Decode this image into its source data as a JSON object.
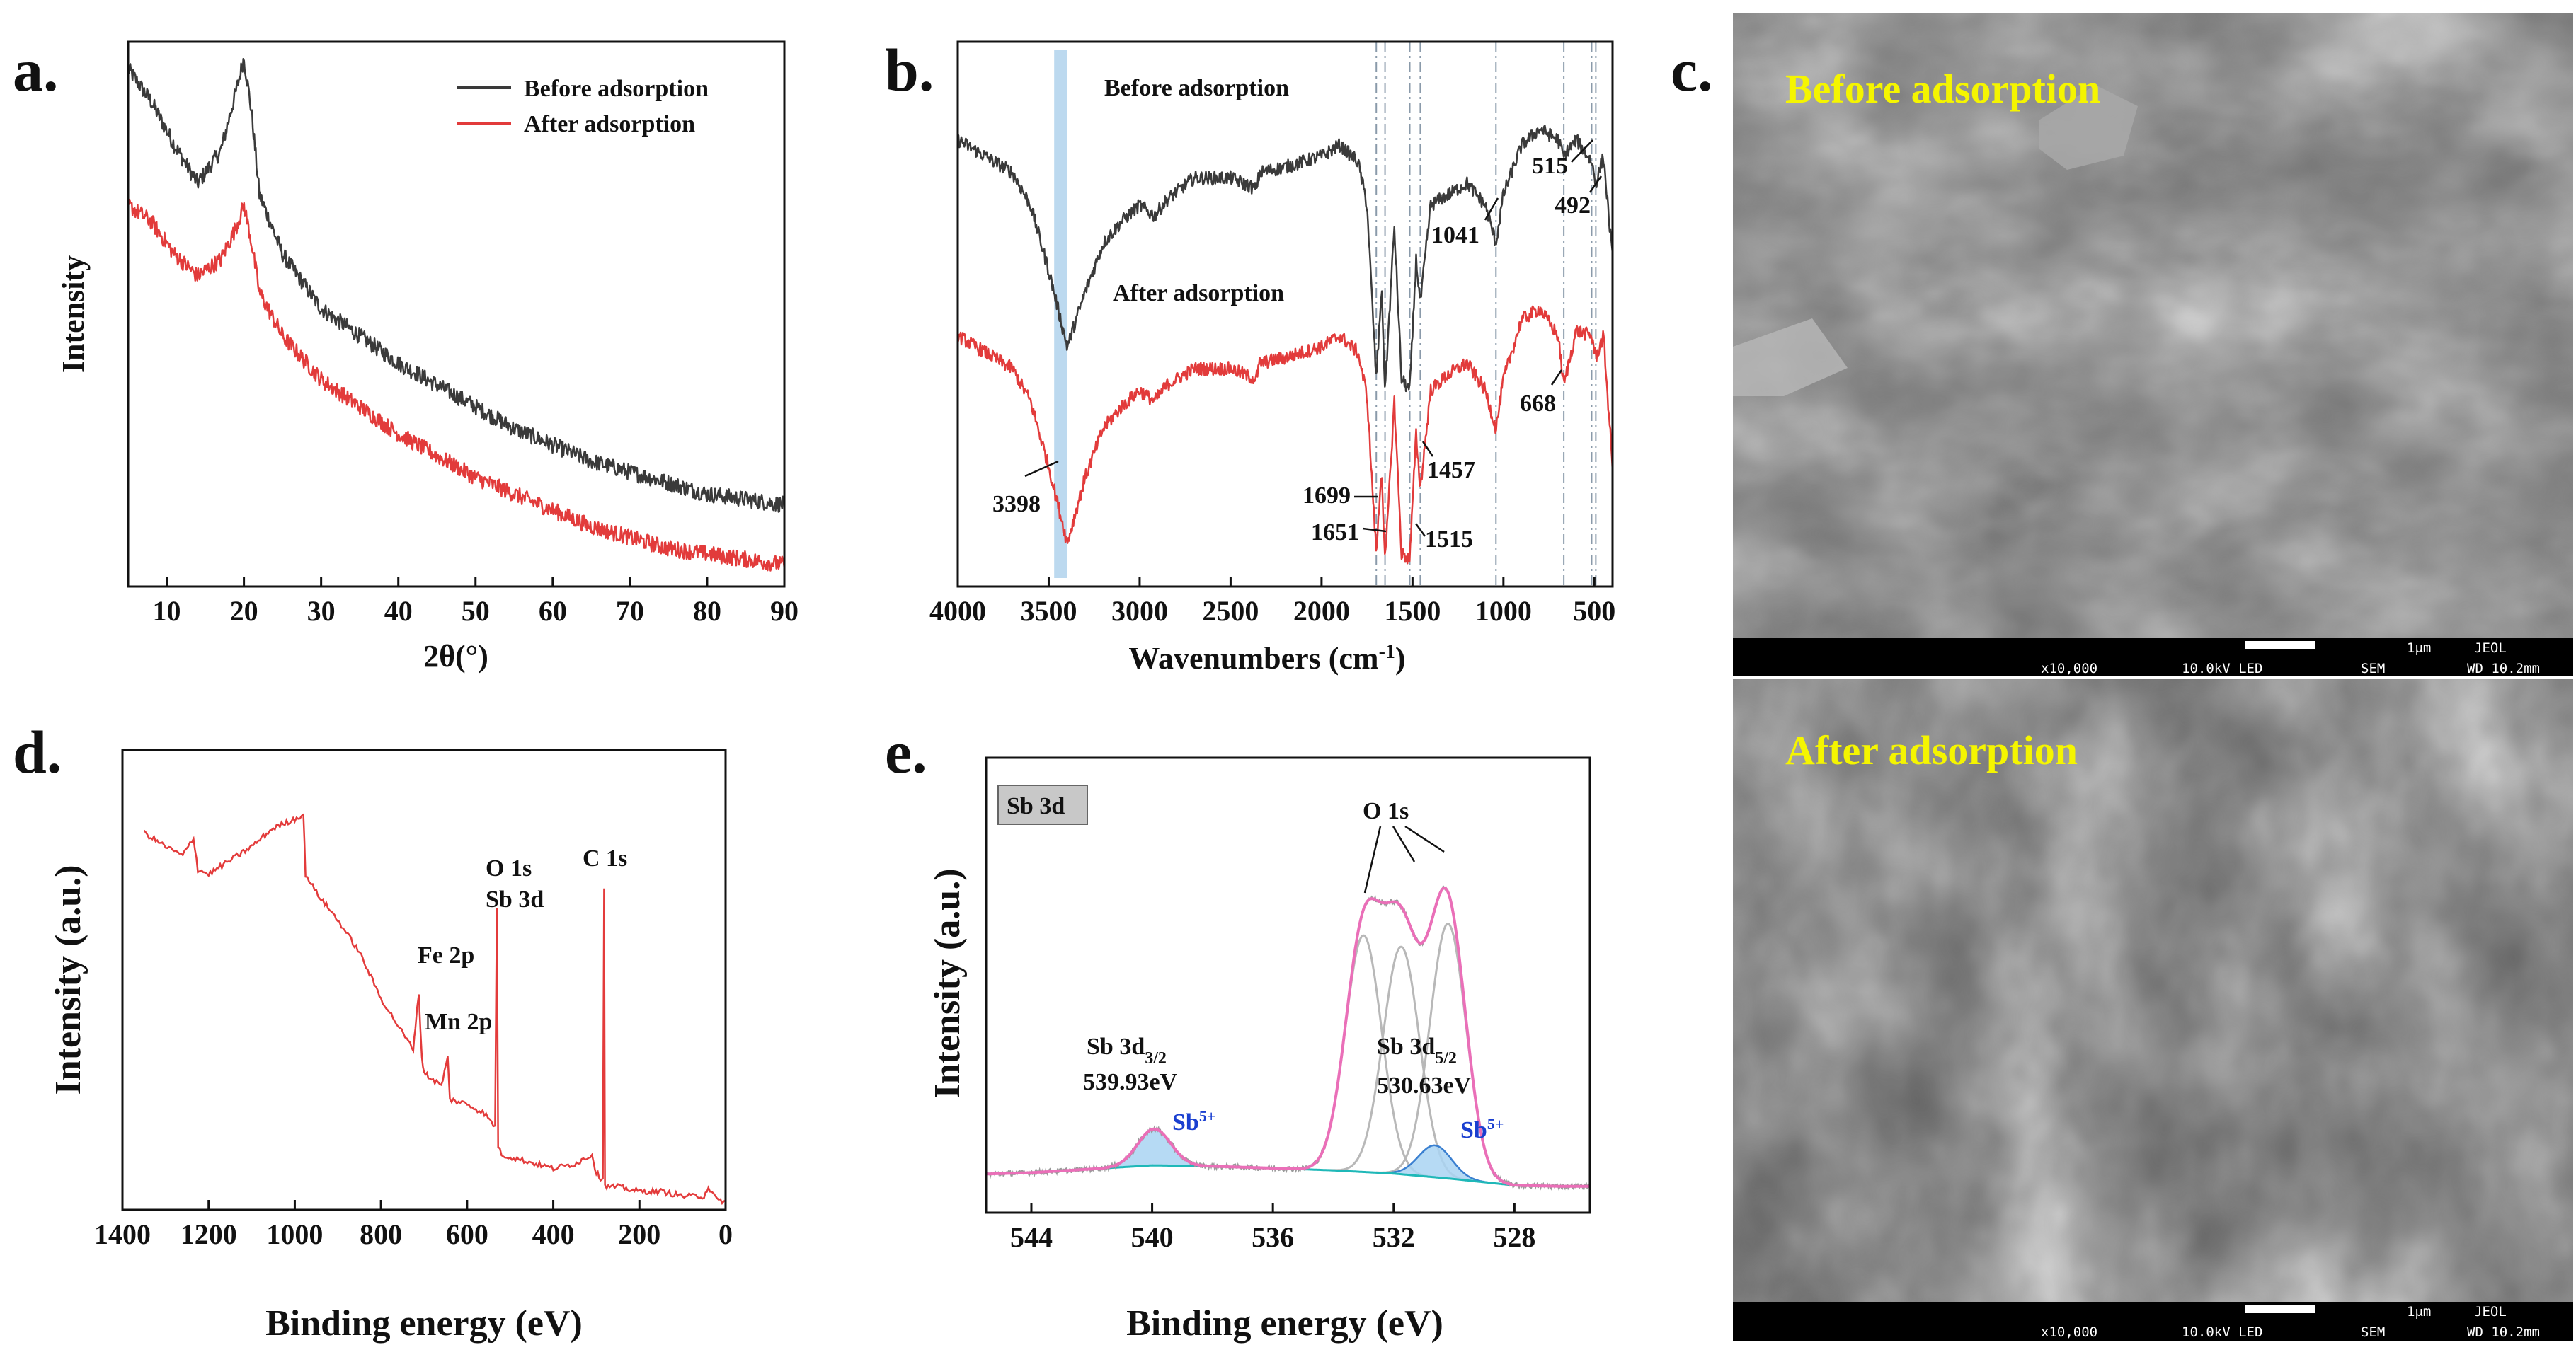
{
  "panels": {
    "a": {
      "label": "a."
    },
    "b": {
      "label": "b."
    },
    "c": {
      "label": "c."
    },
    "d": {
      "label": "d."
    },
    "e": {
      "label": "e."
    }
  },
  "colors": {
    "before": "#3a3a3a",
    "after": "#e23b3b",
    "survey": "#e33b3b",
    "fit_envelope": "#ea6fb8",
    "component": "#b8b8b8",
    "baseline": "#1fb8b8",
    "sb5_fill": "#a9d4f2",
    "sb5_text": "#1a3fd0",
    "highlight_band": "#bcd9ef",
    "sem_title": "#f5f500"
  },
  "chart_data": [
    {
      "panel": "a",
      "type": "line",
      "xlabel": "2θ(°)",
      "ylabel": "Intensity",
      "xlim": [
        5,
        90
      ],
      "x_ticks": [
        10,
        20,
        30,
        40,
        50,
        60,
        70,
        80,
        90
      ],
      "legend_position": "top-right",
      "series": [
        {
          "name": "Before adsorption",
          "color": "#3a3a3a",
          "x": [
            5,
            8,
            11,
            14,
            17,
            19,
            20,
            21,
            22,
            25,
            30,
            35,
            40,
            45,
            50,
            55,
            60,
            65,
            70,
            75,
            80,
            85,
            90
          ],
          "y": [
            0.95,
            0.89,
            0.81,
            0.74,
            0.8,
            0.91,
            0.97,
            0.87,
            0.72,
            0.61,
            0.51,
            0.46,
            0.41,
            0.37,
            0.33,
            0.29,
            0.26,
            0.23,
            0.21,
            0.19,
            0.17,
            0.16,
            0.15
          ]
        },
        {
          "name": "After adsorption",
          "color": "#e23b3b",
          "x": [
            5,
            8,
            11,
            14,
            17,
            19,
            20,
            21,
            22,
            25,
            30,
            35,
            40,
            45,
            50,
            55,
            60,
            65,
            70,
            75,
            80,
            85,
            90
          ],
          "y": [
            0.7,
            0.67,
            0.61,
            0.57,
            0.6,
            0.66,
            0.7,
            0.63,
            0.54,
            0.46,
            0.38,
            0.33,
            0.28,
            0.24,
            0.2,
            0.17,
            0.14,
            0.11,
            0.09,
            0.07,
            0.06,
            0.05,
            0.04
          ]
        }
      ]
    },
    {
      "panel": "b",
      "type": "line",
      "xlabel": "Wavenumbers (cm",
      "xlabel_sup": "-1",
      "xlabel_close": ")",
      "xlim": [
        4000,
        400
      ],
      "x_ticks": [
        4000,
        3500,
        3000,
        2500,
        2000,
        1500,
        1000,
        500
      ],
      "highlight_band": [
        3470,
        3400
      ],
      "marker_lines": [
        1699,
        1651,
        1515,
        1457,
        1041,
        668,
        515,
        492
      ],
      "series": [
        {
          "name": "Before adsorption",
          "color": "#3a3a3a",
          "x": [
            4000,
            3900,
            3800,
            3700,
            3600,
            3500,
            3398,
            3300,
            3200,
            3100,
            3000,
            2920,
            2850,
            2700,
            2500,
            2360,
            2340,
            2200,
            2000,
            1900,
            1800,
            1750,
            1699,
            1670,
            1651,
            1600,
            1560,
            1515,
            1480,
            1457,
            1400,
            1300,
            1200,
            1100,
            1041,
            1000,
            900,
            800,
            700,
            668,
            600,
            515,
            492,
            450,
            400
          ],
          "y": [
            0.82,
            0.8,
            0.78,
            0.76,
            0.7,
            0.58,
            0.44,
            0.54,
            0.63,
            0.67,
            0.7,
            0.68,
            0.71,
            0.75,
            0.75,
            0.73,
            0.76,
            0.77,
            0.79,
            0.81,
            0.78,
            0.7,
            0.38,
            0.55,
            0.36,
            0.66,
            0.38,
            0.36,
            0.6,
            0.52,
            0.7,
            0.72,
            0.74,
            0.7,
            0.63,
            0.72,
            0.81,
            0.84,
            0.82,
            0.79,
            0.82,
            0.78,
            0.74,
            0.79,
            0.6
          ]
        },
        {
          "name": "After adsorption",
          "color": "#e23b3b",
          "x": [
            4000,
            3900,
            3800,
            3700,
            3600,
            3500,
            3398,
            3300,
            3200,
            3100,
            3000,
            2920,
            2850,
            2700,
            2500,
            2360,
            2340,
            2200,
            2000,
            1900,
            1800,
            1750,
            1699,
            1670,
            1651,
            1600,
            1560,
            1515,
            1480,
            1457,
            1400,
            1300,
            1200,
            1100,
            1041,
            1000,
            900,
            800,
            700,
            668,
            600,
            515,
            492,
            450,
            400
          ],
          "y": [
            0.46,
            0.44,
            0.42,
            0.4,
            0.34,
            0.22,
            0.08,
            0.2,
            0.29,
            0.33,
            0.36,
            0.34,
            0.37,
            0.4,
            0.4,
            0.38,
            0.41,
            0.42,
            0.44,
            0.46,
            0.43,
            0.35,
            0.06,
            0.22,
            0.04,
            0.34,
            0.06,
            0.05,
            0.28,
            0.18,
            0.36,
            0.39,
            0.41,
            0.36,
            0.29,
            0.38,
            0.49,
            0.51,
            0.46,
            0.37,
            0.47,
            0.46,
            0.42,
            0.46,
            0.22
          ]
        }
      ],
      "annotations": [
        {
          "text": "Before adsorption"
        },
        {
          "text": "After adsorption"
        },
        {
          "text": "3398"
        },
        {
          "text": "1699"
        },
        {
          "text": "1651"
        },
        {
          "text": "1515"
        },
        {
          "text": "1457"
        },
        {
          "text": "1041"
        },
        {
          "text": "668"
        },
        {
          "text": "515"
        },
        {
          "text": "492"
        }
      ]
    },
    {
      "panel": "d",
      "type": "line",
      "xlabel": "Binding energy (eV)",
      "ylabel": "Intensity (a.u.)",
      "xlim": [
        1400,
        0
      ],
      "x_ticks": [
        1400,
        1200,
        1000,
        800,
        600,
        400,
        200,
        0
      ],
      "series": [
        {
          "name": "",
          "color": "#e33b3b",
          "x": [
            1350,
            1300,
            1260,
            1235,
            1225,
            1200,
            1150,
            1100,
            1050,
            1000,
            980,
            975,
            950,
            900,
            850,
            800,
            760,
            740,
            725,
            720,
            712,
            705,
            700,
            690,
            660,
            645,
            640,
            600,
            560,
            535,
            531,
            528,
            520,
            480,
            400,
            350,
            310,
            300,
            290,
            285,
            282,
            280,
            250,
            200,
            150,
            100,
            50,
            40,
            20,
            0
          ],
          "y": [
            0.82,
            0.79,
            0.77,
            0.81,
            0.74,
            0.73,
            0.76,
            0.79,
            0.83,
            0.85,
            0.86,
            0.73,
            0.69,
            0.63,
            0.56,
            0.46,
            0.4,
            0.37,
            0.35,
            0.4,
            0.47,
            0.33,
            0.3,
            0.29,
            0.27,
            0.33,
            0.24,
            0.23,
            0.21,
            0.18,
            0.66,
            0.14,
            0.12,
            0.11,
            0.09,
            0.1,
            0.12,
            0.08,
            0.07,
            0.07,
            0.7,
            0.05,
            0.05,
            0.04,
            0.04,
            0.03,
            0.03,
            0.05,
            0.02,
            0.02
          ]
        }
      ],
      "annotations": [
        {
          "text": "C 1s"
        },
        {
          "text": "O 1s"
        },
        {
          "text": "Sb 3d"
        },
        {
          "text": "Fe 2p"
        },
        {
          "text": "Mn 2p"
        }
      ]
    },
    {
      "panel": "e",
      "type": "line",
      "title_box": "Sb 3d",
      "xlabel": "Binding energy (eV)",
      "ylabel": "Intensity (a.u.)",
      "xlim": [
        545.5,
        525.5
      ],
      "x_ticks": [
        544,
        540,
        536,
        532,
        528
      ],
      "baseline": {
        "x": [
          545.5,
          544,
          542,
          540,
          538,
          536,
          534,
          532,
          530,
          528,
          526.5
        ],
        "y": [
          0.085,
          0.088,
          0.096,
          0.104,
          0.102,
          0.098,
          0.093,
          0.086,
          0.074,
          0.06,
          0.058
        ]
      },
      "components": [
        {
          "center": 539.93,
          "height": 0.08,
          "sigma": 0.55,
          "type": "Sb5+"
        },
        {
          "center": 533.0,
          "height": 0.52,
          "sigma": 0.6,
          "type": "O"
        },
        {
          "center": 531.75,
          "height": 0.5,
          "sigma": 0.6,
          "type": "O"
        },
        {
          "center": 530.2,
          "height": 0.56,
          "sigma": 0.6,
          "type": "O"
        },
        {
          "center": 530.63,
          "height": 0.07,
          "sigma": 0.55,
          "type": "Sb5+"
        }
      ],
      "annotations": [
        {
          "text": "O 1s"
        },
        {
          "text": "Sb 3d",
          "sub": "3/2"
        },
        {
          "text": "539.93eV"
        },
        {
          "text": "Sb 3d",
          "sub": "5/2"
        },
        {
          "text": "530.63eV"
        },
        {
          "text": "Sb",
          "sup": "5+"
        },
        {
          "text": "Sb",
          "sup": "5+"
        }
      ]
    }
  ],
  "sem": {
    "before": {
      "title": "Before adsorption",
      "scale": "1μm",
      "brand": "JEOL",
      "mag": "x10,000",
      "voltage": "10.0kV LED",
      "mode": "SEM",
      "wd": "WD 10.2mm"
    },
    "after": {
      "title": "After adsorption",
      "scale": "1μm",
      "brand": "JEOL",
      "mag": "x10,000",
      "voltage": "10.0kV LED",
      "mode": "SEM",
      "wd": "WD 10.2mm"
    }
  }
}
